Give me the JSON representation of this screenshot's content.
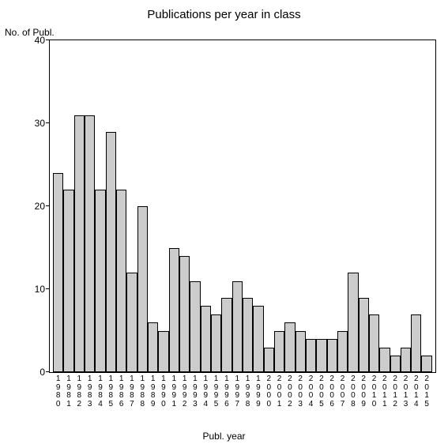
{
  "chart": {
    "type": "bar",
    "title": "Publications per year in class",
    "title_fontsize": 15,
    "ylabel": "No. of Publ.",
    "xlabel": "Publ. year",
    "label_fontsize": 12,
    "ylim": [
      0,
      40
    ],
    "yticks": [
      0,
      10,
      20,
      30,
      40
    ],
    "categories": [
      "1980",
      "1981",
      "1982",
      "1983",
      "1984",
      "1985",
      "1986",
      "1987",
      "1988",
      "1989",
      "1990",
      "1991",
      "1992",
      "1993",
      "1994",
      "1995",
      "1996",
      "1997",
      "1998",
      "1999",
      "2000",
      "2001",
      "2002",
      "2003",
      "2004",
      "2005",
      "2006",
      "2007",
      "2008",
      "2009",
      "2010",
      "2011",
      "2012",
      "2013",
      "2014",
      "2015"
    ],
    "values": [
      24,
      22,
      31,
      31,
      22,
      29,
      22,
      12,
      20,
      6,
      5,
      15,
      14,
      11,
      8,
      7,
      9,
      11,
      9,
      8,
      3,
      5,
      6,
      5,
      4,
      4,
      4,
      5,
      12,
      9,
      7,
      3,
      2,
      3,
      7,
      2
    ],
    "bar_color": "#cccccc",
    "bar_border_color": "#000000",
    "background_color": "#ffffff",
    "axis_color": "#000000",
    "tick_fontsize": 12,
    "xtick_fontsize": 10,
    "bar_width": 1.0
  }
}
